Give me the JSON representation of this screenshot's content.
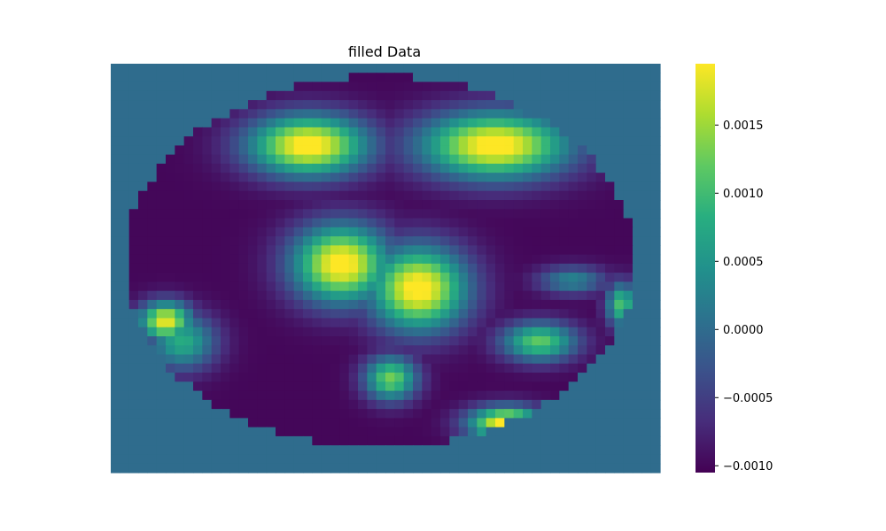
{
  "chart_data": {
    "type": "heatmap",
    "title": "filled Data",
    "colormap": "viridis",
    "axes_visible": false,
    "grid": false,
    "legend": "colorbar-right",
    "grid_size": [
      60,
      45
    ],
    "value_range": [
      -0.00105,
      0.00195
    ],
    "background_value": 0.0,
    "inside_base_value": -0.001,
    "region": {
      "type": "ellipse",
      "center": [
        0.49,
        0.485
      ],
      "radius": [
        0.465,
        0.455
      ]
    },
    "blobs": [
      {
        "id": "upper-left-peak",
        "center": [
          0.36,
          0.2
        ],
        "radius": [
          0.16,
          0.11
        ],
        "value": 0.0021
      },
      {
        "id": "upper-right-peak",
        "center": [
          0.7,
          0.2
        ],
        "radius": [
          0.2,
          0.12
        ],
        "value": 0.0021
      },
      {
        "id": "center-left-peak",
        "center": [
          0.42,
          0.49
        ],
        "radius": [
          0.13,
          0.14
        ],
        "value": 0.0021
      },
      {
        "id": "center-right-peak",
        "center": [
          0.56,
          0.55
        ],
        "radius": [
          0.13,
          0.15
        ],
        "value": 0.0021
      },
      {
        "id": "left-edge-peak",
        "center": [
          0.1,
          0.63
        ],
        "radius": [
          0.07,
          0.07
        ],
        "value": 0.0019
      },
      {
        "id": "left-edge-ring",
        "center": [
          0.13,
          0.68
        ],
        "radius": [
          0.09,
          0.1
        ],
        "value": 0.0008
      },
      {
        "id": "lower-middle-spot",
        "center": [
          0.51,
          0.77
        ],
        "radius": [
          0.07,
          0.08
        ],
        "value": 0.0013
      },
      {
        "id": "lower-right-spot",
        "center": [
          0.78,
          0.68
        ],
        "radius": [
          0.1,
          0.07
        ],
        "value": 0.0012
      },
      {
        "id": "bottom-peak",
        "center": [
          0.72,
          0.88
        ],
        "radius": [
          0.1,
          0.06
        ],
        "value": 0.0021
      },
      {
        "id": "right-edge-spot",
        "center": [
          0.93,
          0.59
        ],
        "radius": [
          0.04,
          0.08
        ],
        "value": 0.0011
      },
      {
        "id": "right-mid-band",
        "center": [
          0.84,
          0.53
        ],
        "radius": [
          0.09,
          0.05
        ],
        "value": 0.0003
      }
    ],
    "colorbar": {
      "ticks": [
        {
          "value": 0.0015,
          "label": "0.0015"
        },
        {
          "value": 0.001,
          "label": "0.0010"
        },
        {
          "value": 0.0005,
          "label": "0.0005"
        },
        {
          "value": 0.0,
          "label": "0.0000"
        },
        {
          "value": -0.0005,
          "label": "−0.0005"
        },
        {
          "value": -0.001,
          "label": "−0.0010"
        }
      ]
    }
  }
}
